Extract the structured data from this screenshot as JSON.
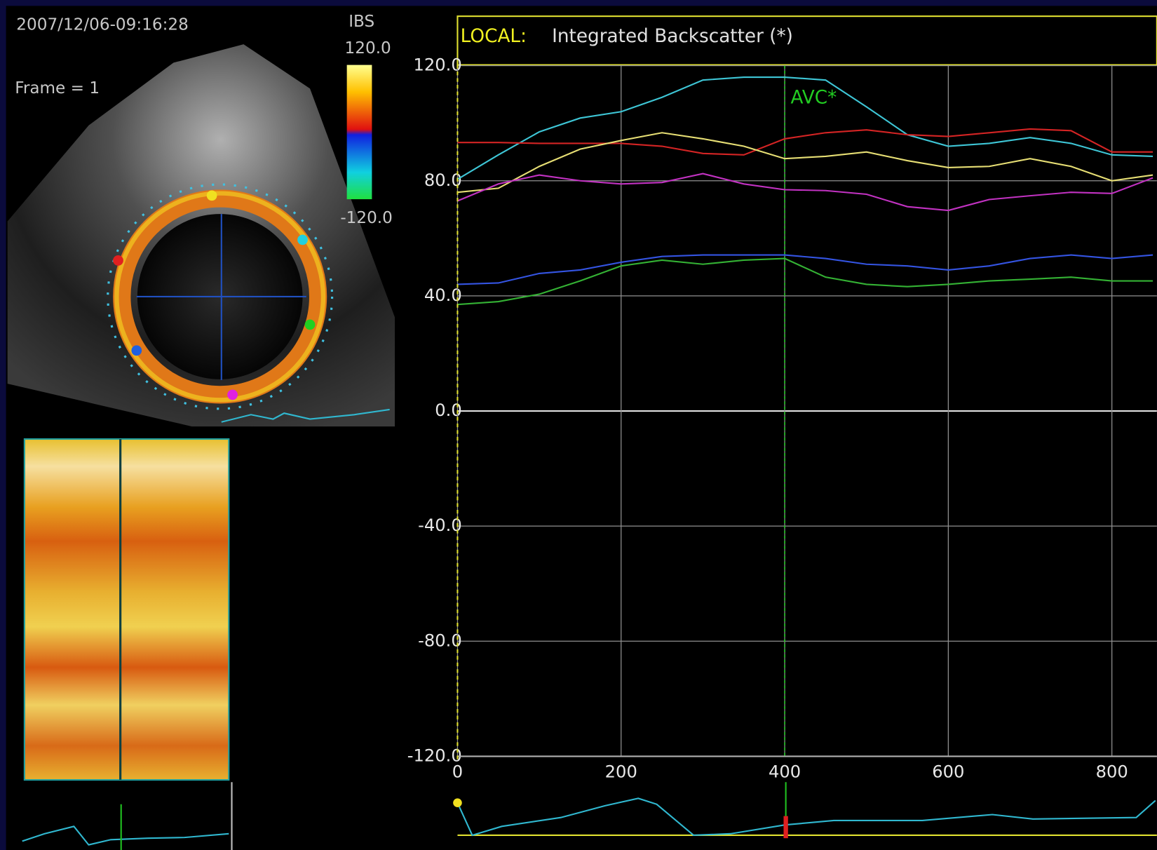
{
  "screen": {
    "timestamp": "2007/12/06-09:16:28",
    "frame": "Frame =  1",
    "colorbar_title": "IBS",
    "colorbar_max": "120.0",
    "colorbar_min": "-120.0"
  },
  "chart_data": {
    "type": "line",
    "title_prefix": "LOCAL:",
    "title": "Integrated Backscatter (*)",
    "x": [
      0,
      50,
      100,
      150,
      200,
      250,
      300,
      350,
      400,
      450,
      500,
      550,
      600,
      650,
      700,
      750,
      800,
      850
    ],
    "series": [
      {
        "color": "#3ec6d6",
        "values": [
          80.5,
          89,
          97,
          101.8,
          104,
          109,
          115,
          116,
          116,
          115,
          105.7,
          96,
          92,
          93,
          95,
          93,
          89,
          88.5
        ]
      },
      {
        "color": "#d42424",
        "values": [
          93.3,
          93.3,
          93,
          93,
          93,
          92,
          89.5,
          89,
          94.6,
          96.7,
          97.7,
          96,
          95.4,
          96.7,
          98,
          97.4,
          90,
          90
        ]
      },
      {
        "color": "#e6de74",
        "values": [
          76,
          77.4,
          85,
          91,
          94,
          96.7,
          94.6,
          92,
          87.7,
          88.5,
          90,
          87,
          84.6,
          85,
          87.7,
          85,
          80,
          82
        ]
      },
      {
        "color": "#c232c2",
        "values": [
          73,
          78.9,
          82,
          80,
          78.9,
          79.4,
          82.5,
          78.9,
          76.9,
          76.6,
          75.3,
          71,
          69.7,
          73.5,
          74.8,
          76,
          75.6,
          81
        ]
      },
      {
        "color": "#3454e2",
        "values": [
          44,
          44.5,
          47.8,
          49,
          51.7,
          53.7,
          54.2,
          54.2,
          54.2,
          53,
          51,
          50.4,
          49,
          50.4,
          53,
          54.2,
          53,
          54.2
        ]
      },
      {
        "color": "#34b234",
        "values": [
          37,
          38,
          40.6,
          45.2,
          50.4,
          52.4,
          51,
          52.4,
          53,
          46.5,
          44,
          43.2,
          44,
          45.2,
          45.8,
          46.5,
          45.2,
          45.2
        ]
      }
    ],
    "xlim": [
      0,
      855
    ],
    "ylim": [
      -120,
      120
    ],
    "xticks": [
      0,
      200,
      400,
      600,
      800
    ],
    "yticks": [
      {
        "value": 120,
        "label": "120.0"
      },
      {
        "value": 80,
        "label": "80.0"
      },
      {
        "value": 40,
        "label": "40.0"
      },
      {
        "value": 0,
        "label": "0.0"
      },
      {
        "value": -40,
        "label": "-40.0"
      },
      {
        "value": -80,
        "label": "-80.0"
      },
      {
        "value": -120,
        "label": "-120.0"
      }
    ],
    "grid": true,
    "annotations": [
      {
        "text": "AVC*",
        "x": 400,
        "color": "#22cc22"
      }
    ]
  }
}
